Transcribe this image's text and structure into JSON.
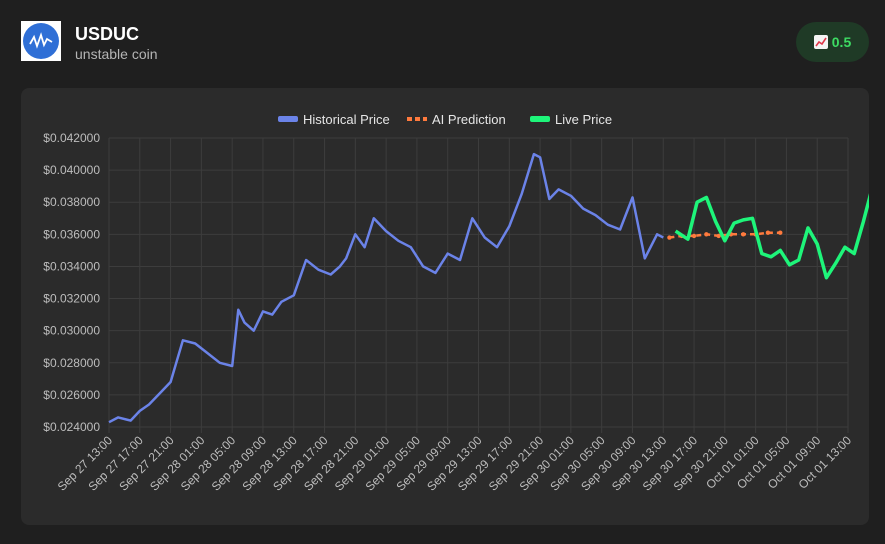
{
  "header": {
    "name": "USDUC",
    "subtitle": "unstable coin",
    "badge_icon": "chart-increasing-icon",
    "badge_value": "0.5"
  },
  "colors": {
    "historical": "#6b83e8",
    "prediction": "#ff7a3d",
    "live": "#1ef57a",
    "badge_text": "#3ddc63"
  },
  "chart_data": {
    "type": "line",
    "title": "",
    "xlabel": "",
    "ylabel": "",
    "legend_position": "top-center",
    "grid": true,
    "ylim": [
      0.024,
      0.042
    ],
    "y_ticks": [
      "$0.042000",
      "$0.040000",
      "$0.038000",
      "$0.036000",
      "$0.034000",
      "$0.032000",
      "$0.030000",
      "$0.028000",
      "$0.026000",
      "$0.024000"
    ],
    "y_tick_values": [
      0.042,
      0.04,
      0.038,
      0.036,
      0.034,
      0.032,
      0.03,
      0.028,
      0.026,
      0.024
    ],
    "x_ticks": [
      "Sep 27 13:00",
      "Sep 27 17:00",
      "Sep 27 21:00",
      "Sep 28 01:00",
      "Sep 28 05:00",
      "Sep 28 09:00",
      "Sep 28 13:00",
      "Sep 28 17:00",
      "Sep 28 21:00",
      "Sep 29 01:00",
      "Sep 29 05:00",
      "Sep 29 09:00",
      "Sep 29 13:00",
      "Sep 29 17:00",
      "Sep 29 21:00",
      "Sep 30 01:00",
      "Sep 30 05:00",
      "Sep 30 09:00",
      "Sep 30 13:00",
      "Sep 30 17:00",
      "Sep 30 21:00",
      "Oct 01 01:00",
      "Oct 01 05:00",
      "Oct 01 09:00",
      "Oct 01 13:00"
    ],
    "series": [
      {
        "name": "Historical Price",
        "x": [
          0,
          0.3,
          0.7,
          1.0,
          1.3,
          1.7,
          2.0,
          2.4,
          2.8,
          3.2,
          3.6,
          4.0,
          4.2,
          4.4,
          4.7,
          5.0,
          5.3,
          5.6,
          6.0,
          6.4,
          6.8,
          7.2,
          7.5,
          7.7,
          8.0,
          8.3,
          8.6,
          9.0,
          9.4,
          9.8,
          10.2,
          10.6,
          11.0,
          11.4,
          11.8,
          12.2,
          12.6,
          13.0,
          13.4,
          13.8,
          14.0,
          14.3,
          14.6,
          15.0,
          15.4,
          15.8,
          16.2,
          16.6,
          17.0,
          17.4,
          17.8,
          18.0
        ],
        "values": [
          0.0243,
          0.0246,
          0.0244,
          0.025,
          0.0254,
          0.0262,
          0.0268,
          0.0294,
          0.0292,
          0.0286,
          0.028,
          0.0278,
          0.0313,
          0.0305,
          0.03,
          0.0312,
          0.031,
          0.0318,
          0.0322,
          0.0344,
          0.0338,
          0.0335,
          0.034,
          0.0345,
          0.036,
          0.0352,
          0.037,
          0.0362,
          0.0356,
          0.0352,
          0.034,
          0.0336,
          0.0348,
          0.0344,
          0.037,
          0.0358,
          0.0352,
          0.0365,
          0.0385,
          0.041,
          0.0408,
          0.0382,
          0.0388,
          0.0384,
          0.0376,
          0.0372,
          0.0366,
          0.0363,
          0.0383,
          0.0345,
          0.036,
          0.0358
        ]
      },
      {
        "name": "AI Prediction",
        "x": [
          18.2,
          18.6,
          19.0,
          19.4,
          19.8,
          20.2,
          20.6,
          21.0,
          21.4,
          21.8
        ],
        "values": [
          0.0358,
          0.0359,
          0.0359,
          0.036,
          0.0359,
          0.036,
          0.036,
          0.036,
          0.0361,
          0.0361
        ]
      },
      {
        "name": "Live Price",
        "x": [
          18.4,
          18.8,
          19.1,
          19.4,
          19.7,
          20.0,
          20.3,
          20.6,
          20.9,
          21.2,
          21.5,
          21.8,
          22.1,
          22.4,
          22.7,
          23.0,
          23.3,
          23.6,
          23.9,
          24.2,
          24.5,
          24.8,
          25.0
        ],
        "values": [
          0.0362,
          0.0357,
          0.038,
          0.0383,
          0.0368,
          0.0356,
          0.0367,
          0.0369,
          0.037,
          0.0348,
          0.0346,
          0.035,
          0.0341,
          0.0344,
          0.0364,
          0.0354,
          0.0333,
          0.0342,
          0.0352,
          0.0348,
          0.0368,
          0.039,
          0.0386
        ]
      }
    ]
  }
}
